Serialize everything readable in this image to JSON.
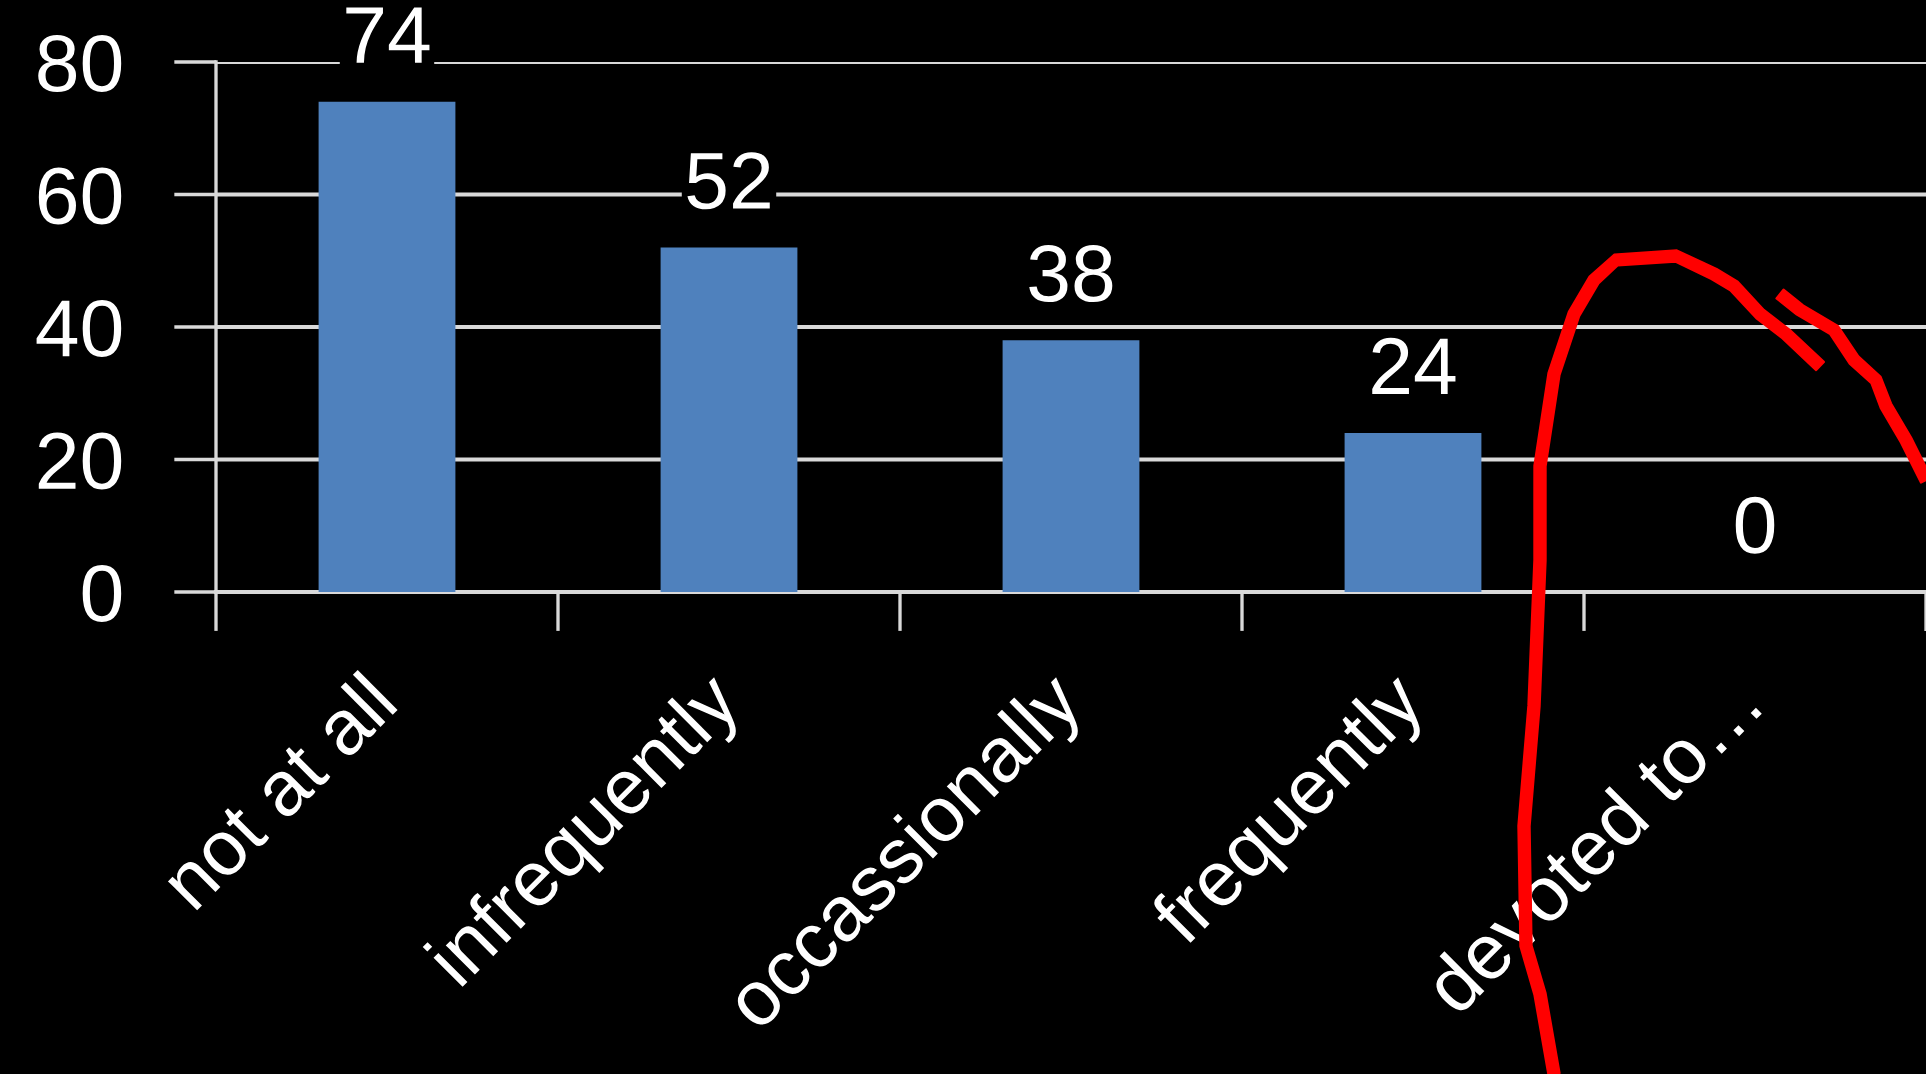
{
  "chart_data": {
    "type": "bar",
    "categories": [
      "not at all",
      "infrequently",
      "occassionally",
      "frequently",
      "devoted to…"
    ],
    "values": [
      74,
      52,
      38,
      24,
      0
    ],
    "color": "#4f81bd",
    "ylim": [
      0,
      80
    ],
    "yticks": [
      0,
      20,
      40,
      60,
      80
    ],
    "grid": "y",
    "data_labels": true
  }
}
